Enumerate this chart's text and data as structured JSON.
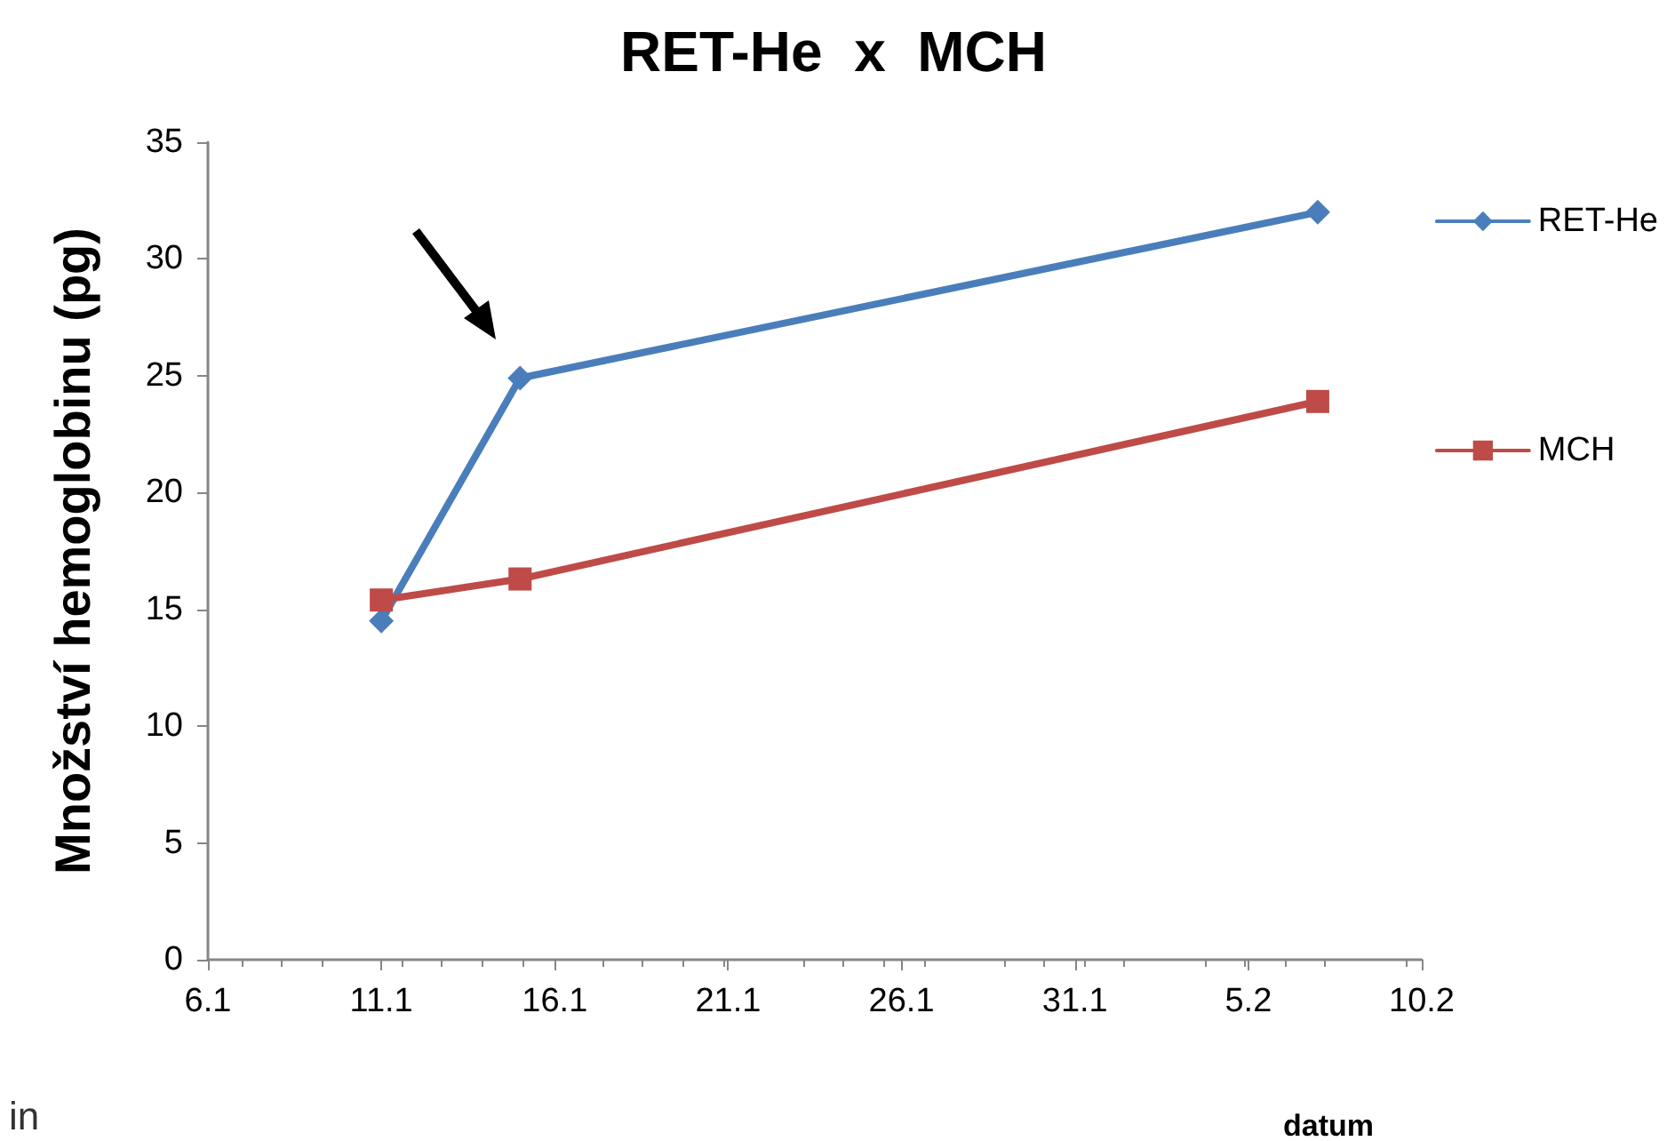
{
  "chart_data": {
    "type": "line",
    "title": "RET-He  x  MCH",
    "xlabel": "datum",
    "ylabel": "Množství hemoglobinu (pg)",
    "x": [
      "--01-11",
      "--01-15",
      "--02-07"
    ],
    "series": [
      {
        "name": "RET-He",
        "color": "#4a7ebb",
        "marker": "diamond",
        "values": [
          14.5,
          24.9,
          32.0
        ]
      },
      {
        "name": "MCH",
        "color": "#be4b48",
        "marker": "square",
        "values": [
          15.4,
          16.3,
          23.9
        ]
      }
    ],
    "xlim": [
      "--01-06",
      "--02-10"
    ],
    "xticks": [
      {
        "value": "--01-06",
        "label": "6.1"
      },
      {
        "value": "--01-11",
        "label": "11.1"
      },
      {
        "value": "--01-16",
        "label": "16.1"
      },
      {
        "value": "--01-21",
        "label": "21.1"
      },
      {
        "value": "--01-26",
        "label": "26.1"
      },
      {
        "value": "--01-31",
        "label": "31.1"
      },
      {
        "value": "--02-05",
        "label": "5.2"
      },
      {
        "value": "--02-10",
        "label": "10.2"
      }
    ],
    "ylim": [
      0,
      35
    ],
    "yticks": [
      0,
      5,
      10,
      15,
      20,
      25,
      30,
      35
    ],
    "grid": false,
    "legend": "right",
    "line_style": "solid",
    "annotations": [
      "in"
    ]
  }
}
